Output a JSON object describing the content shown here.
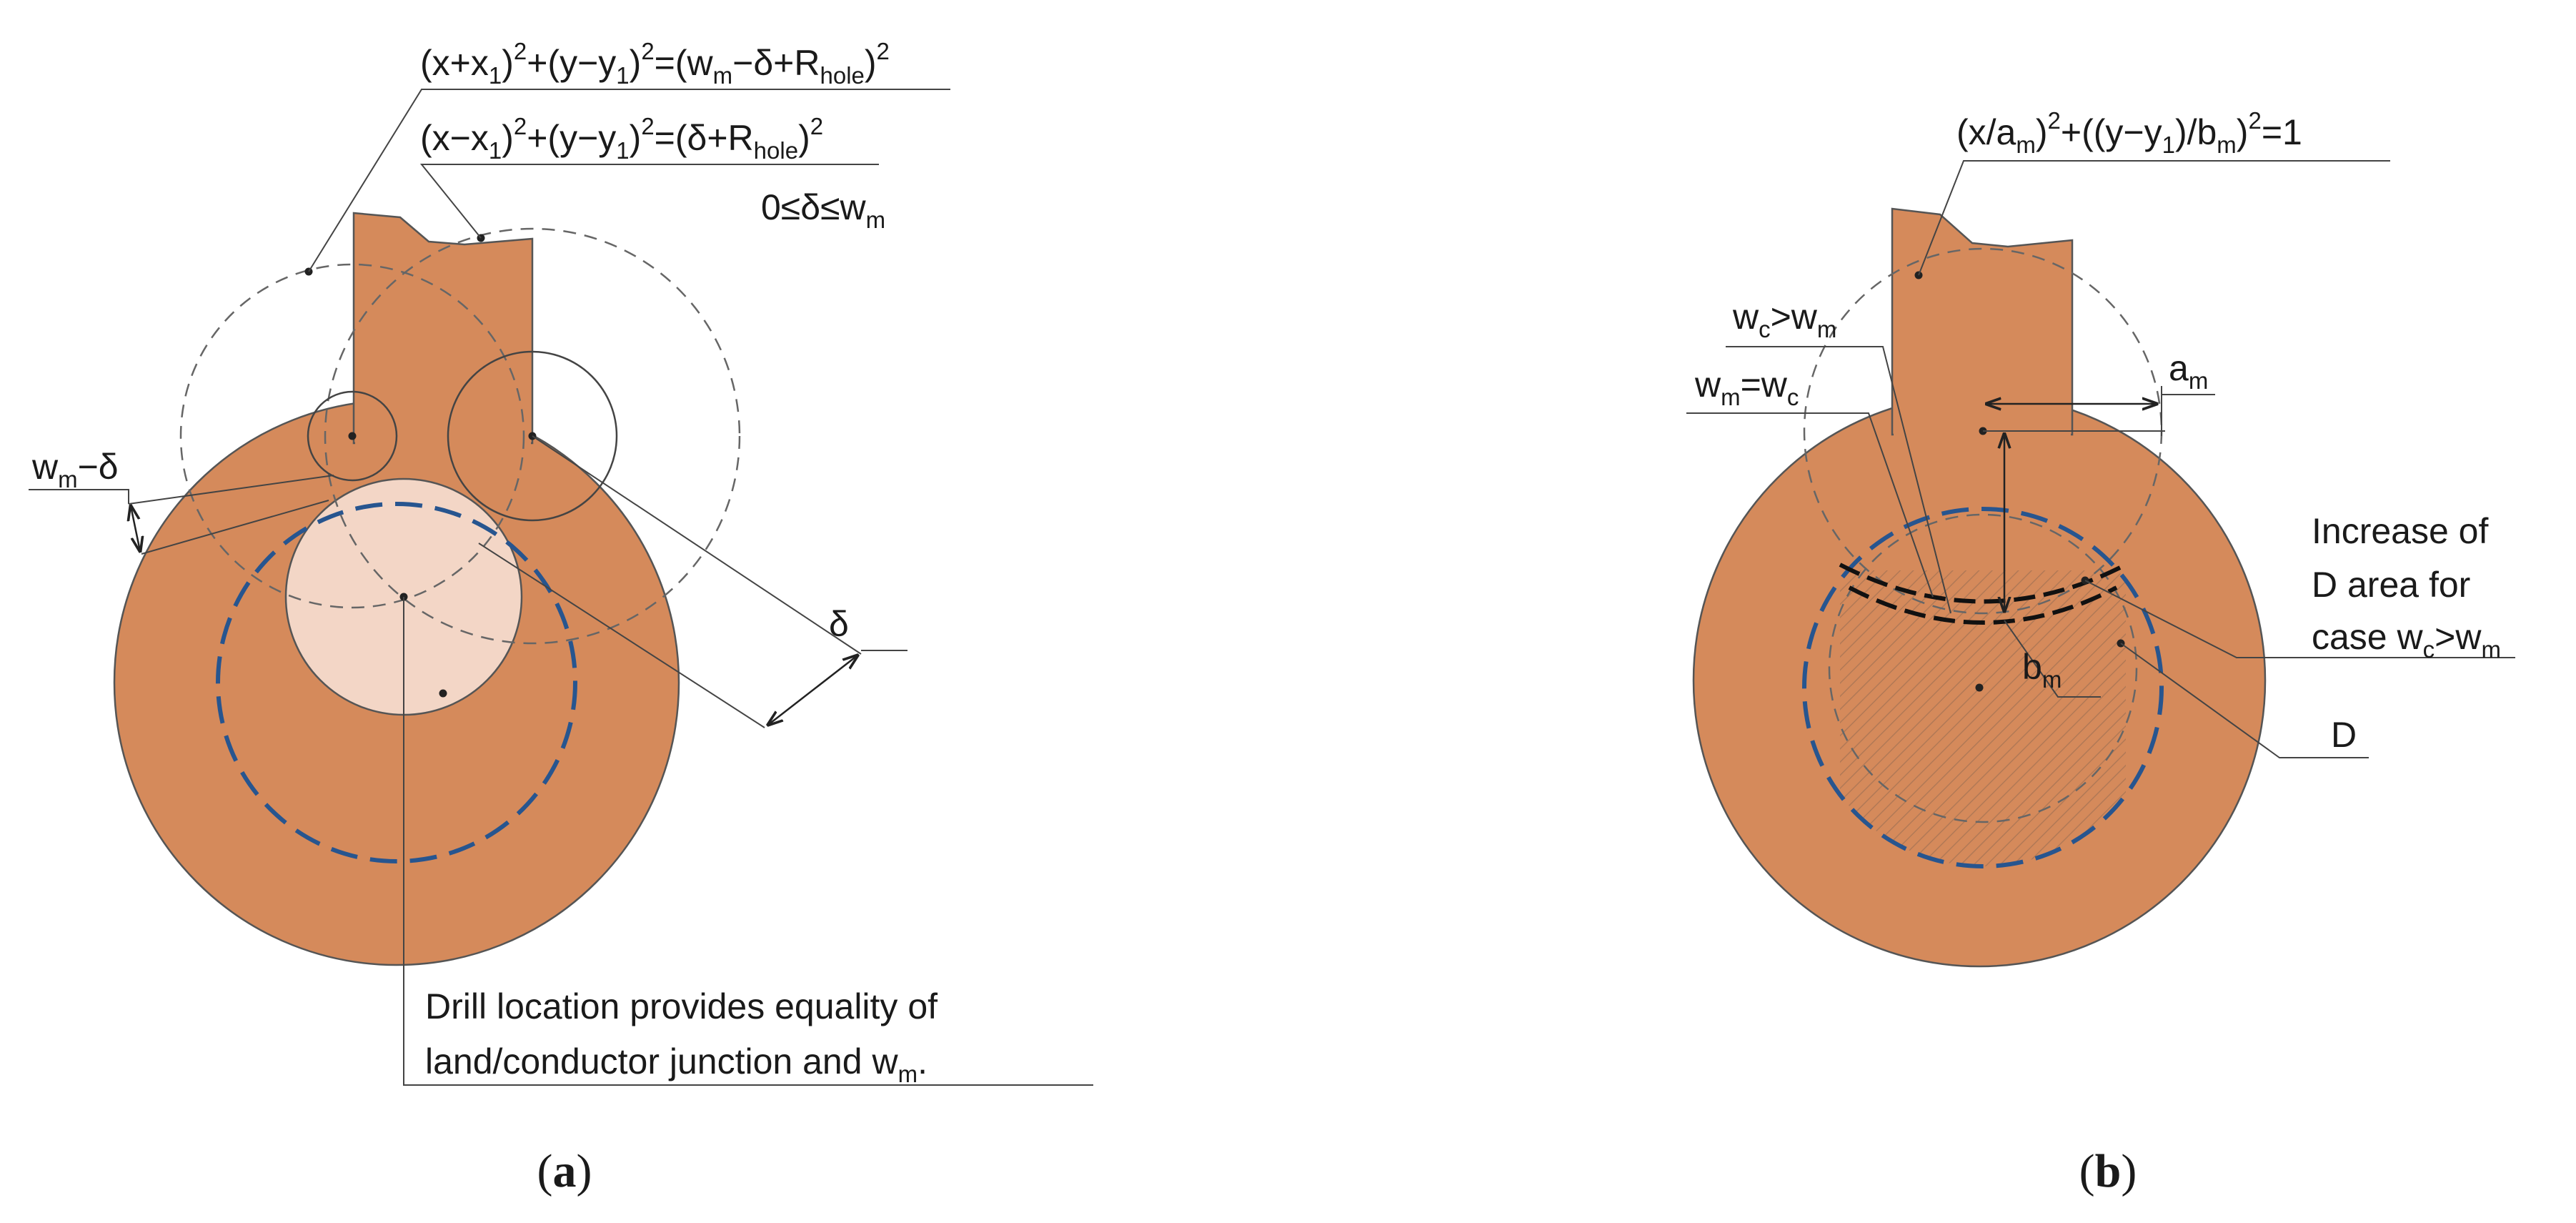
{
  "panel_a": {
    "eq_outer": {
      "p1": "(x+x",
      "s1": "1",
      "p2": ")",
      "e1": "2",
      "p3": "+(y−y",
      "s2": "1",
      "p4": ")",
      "e2": "2",
      "p5": "=(w",
      "s3": "m",
      "p6": "−δ+R",
      "s4": "hole",
      "p7": ")",
      "e3": "2"
    },
    "eq_inner": {
      "p1": "(x−x",
      "s1": "1",
      "p2": ")",
      "e1": "2",
      "p3": "+(y−y",
      "s2": "1",
      "p4": ")",
      "e2": "2",
      "p5": "=(δ+R",
      "s3": "hole",
      "p6": ")",
      "e3": "2"
    },
    "constraint": {
      "p1": "0≤δ≤w",
      "s1": "m"
    },
    "dim_wm_delta": {
      "p1": "w",
      "s1": "m",
      "p2": "−δ"
    },
    "dim_delta": "δ",
    "note_line1": "Drill location provides equality of",
    "note_line2": {
      "p1": "land/conductor junction and w",
      "s1": "m",
      "p2": "."
    },
    "caption": {
      "open": "(",
      "letter": "a",
      "close": ")"
    }
  },
  "panel_b": {
    "ellipse_eq": {
      "p1": "(x/a",
      "s1": "m",
      "p2": ")",
      "e1": "2",
      "p3": "+((y−y",
      "s2": "1",
      "p4": ")/b",
      "s3": "m",
      "p5": ")",
      "e2": "2",
      "p6": "=1"
    },
    "label_wc_gt_wm": {
      "p1": "w",
      "s1": "c",
      "p2": ">w",
      "s2": "m"
    },
    "label_wm_eq_wc": {
      "p1": "w",
      "s1": "m",
      "p2": "=w",
      "s2": "c"
    },
    "label_am": {
      "p1": "a",
      "s1": "m"
    },
    "label_bm": {
      "p1": "b",
      "s1": "m"
    },
    "increase_line1": "Increase of",
    "increase_line2": "D area for",
    "increase_line3": {
      "p1": "case w",
      "s1": "c",
      "p2": ">w",
      "s2": "m"
    },
    "label_D": "D",
    "caption": {
      "open": "(",
      "letter": "b",
      "close": ")"
    }
  },
  "colors": {
    "copper": "#d58a5b",
    "drill_hole": "#f3d6c6",
    "blue_dashed": "#27558f",
    "outline": "#555555"
  }
}
